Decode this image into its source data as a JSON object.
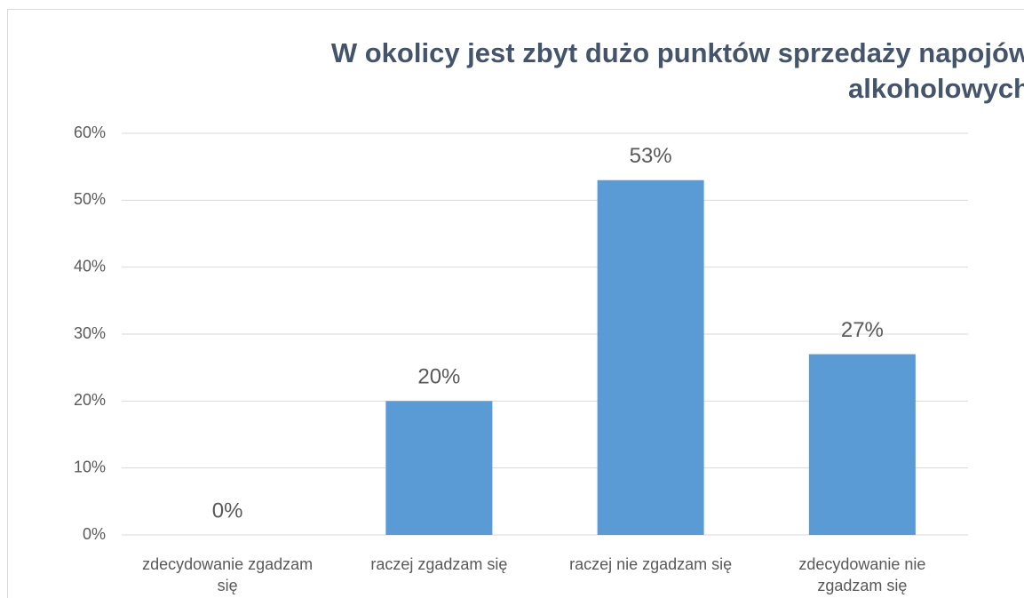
{
  "chart_data": {
    "type": "bar",
    "title": "W okolicy jest zbyt dużo punktów sprzedaży napojów alkoholowych",
    "categories": [
      "zdecydowanie zgadzam się",
      "raczej zgadzam się",
      "raczej nie zgadzam się",
      "zdecydowanie nie zgadzam się"
    ],
    "values": [
      0,
      20,
      53,
      27
    ],
    "value_labels": [
      "0%",
      "20%",
      "53%",
      "27%"
    ],
    "color": "#5b9bd5",
    "ylim": [
      0,
      60
    ],
    "yticks": [
      {
        "value": 0,
        "label": "0%"
      },
      {
        "value": 10,
        "label": "10%"
      },
      {
        "value": 20,
        "label": "20%"
      },
      {
        "value": 30,
        "label": "30%"
      },
      {
        "value": 40,
        "label": "40%"
      },
      {
        "value": 50,
        "label": "50%"
      },
      {
        "value": 60,
        "label": "60%"
      }
    ],
    "grid": true
  }
}
